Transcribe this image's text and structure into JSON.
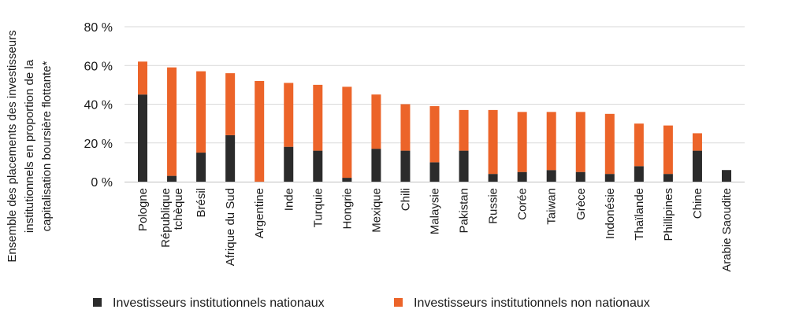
{
  "chart_data": {
    "type": "bar",
    "stacked": true,
    "ylabel_lines": [
      "Ensemble des placements des investisseurs",
      "institutionnels en proportion de la",
      "capitalisation boursière flottante*"
    ],
    "ylim": [
      0,
      80
    ],
    "yticks": [
      0,
      20,
      40,
      60,
      80
    ],
    "ytick_labels": [
      "0 %",
      "20 %",
      "40 %",
      "60 %",
      "80 %"
    ],
    "grid": true,
    "legend_position": "bottom",
    "categories": [
      [
        "Pologne"
      ],
      [
        "République",
        "tchèque"
      ],
      [
        "Brésil"
      ],
      [
        "Afrique du Sud"
      ],
      [
        "Argentine"
      ],
      [
        "Inde"
      ],
      [
        "Turquie"
      ],
      [
        "Hongrie"
      ],
      [
        "Mexique"
      ],
      [
        "Chili"
      ],
      [
        "Malaysie"
      ],
      [
        "Pakistan"
      ],
      [
        "Russie"
      ],
      [
        "Corée"
      ],
      [
        "Taiwan"
      ],
      [
        "Grèce"
      ],
      [
        "Indonésie"
      ],
      [
        "Thaïlande"
      ],
      [
        "Phillipines"
      ],
      [
        "Chine"
      ],
      [
        "Arabie Saoudite"
      ]
    ],
    "series": [
      {
        "name": "Investisseurs institutionnels nationaux",
        "color": "#2b2b2b",
        "values": [
          45,
          3,
          15,
          24,
          0,
          18,
          16,
          2,
          17,
          16,
          10,
          16,
          4,
          5,
          6,
          5,
          4,
          8,
          4,
          16,
          6
        ]
      },
      {
        "name": "Investisseurs institutionnels non nationaux",
        "color": "#ec6429",
        "values": [
          17,
          56,
          42,
          32,
          52,
          33,
          34,
          47,
          28,
          24,
          29,
          21,
          33,
          31,
          30,
          31,
          31,
          22,
          25,
          9,
          0
        ]
      }
    ]
  }
}
